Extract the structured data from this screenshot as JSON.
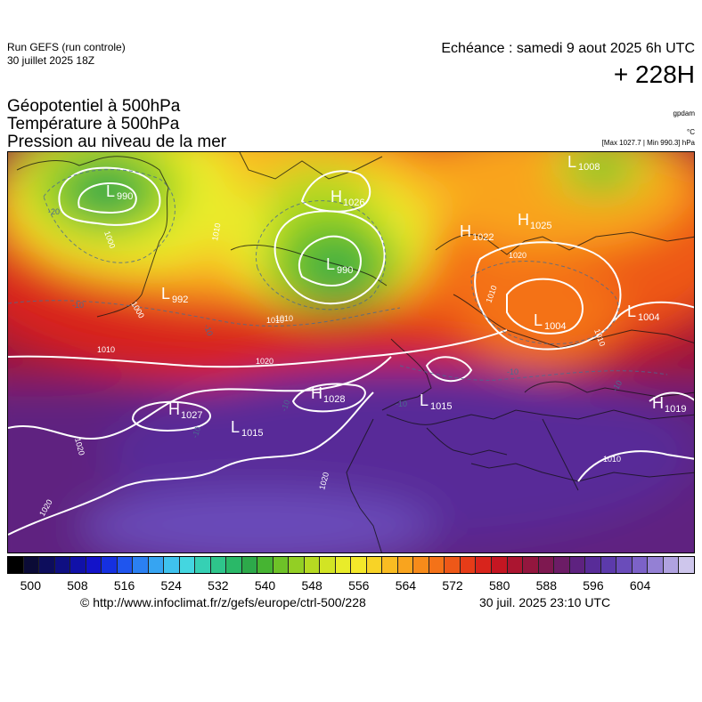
{
  "header": {
    "run_title": "Run GEFS (run controle)",
    "run_date": "30 juillet 2025 18Z",
    "valid_time": "Echéance : samedi 9 aout 2025 6h UTC",
    "lead_time": "+ 228H"
  },
  "parameters": [
    "Géopotentiel à 500hPa",
    "Température à 500hPa",
    "Pression au niveau de la mer"
  ],
  "units": {
    "geopotential": "gpdam",
    "temperature": "°C",
    "pressure": "[Max 1027.7 | Min 990.3] hPa"
  },
  "pressure_centers": [
    {
      "type": "L",
      "value": "990"
    },
    {
      "type": "H",
      "value": "1026"
    },
    {
      "type": "L",
      "value": "990"
    },
    {
      "type": "L",
      "value": "992"
    },
    {
      "type": "H",
      "value": "1025"
    },
    {
      "type": "H",
      "value": "1022"
    },
    {
      "type": "L",
      "value": "1004"
    },
    {
      "type": "L",
      "value": "1004"
    },
    {
      "type": "L",
      "value": "1008"
    },
    {
      "type": "H",
      "value": "1028"
    },
    {
      "type": "H",
      "value": "1027"
    },
    {
      "type": "L",
      "value": "1015"
    },
    {
      "type": "L",
      "value": "1015"
    },
    {
      "type": "H",
      "value": "1019"
    }
  ],
  "isobar_labels": [
    "1000",
    "1000",
    "1010",
    "1010",
    "1010",
    "1020",
    "1020",
    "1020",
    "1010",
    "1020",
    "1010",
    "1010",
    "1010",
    "1020"
  ],
  "temperature_labels": [
    "-20",
    "-10",
    "-10",
    "-10",
    "-10",
    "-10",
    "-10",
    "-10"
  ],
  "colorbar": {
    "tick_labels": [
      "500",
      "508",
      "516",
      "524",
      "532",
      "540",
      "548",
      "556",
      "564",
      "572",
      "580",
      "588",
      "596",
      "604"
    ],
    "colors": [
      "#000000",
      "#0b0b36",
      "#0d0d5c",
      "#0f0f82",
      "#1111a8",
      "#1313c9",
      "#1530e0",
      "#1f55ee",
      "#2b80f2",
      "#36a4f2",
      "#3fc2ee",
      "#44d6e0",
      "#36d0b4",
      "#2ec58b",
      "#2ab868",
      "#2da94a",
      "#46b432",
      "#6ec228",
      "#93cf24",
      "#b6da22",
      "#d2e424",
      "#e9ec2a",
      "#f4e82a",
      "#f8d326",
      "#f9bc22",
      "#f9a41e",
      "#f78b1a",
      "#f47218",
      "#ee5818",
      "#e63c18",
      "#d8241c",
      "#c41622",
      "#ab1530",
      "#93163e",
      "#7e1850",
      "#6c1c66",
      "#5e2280",
      "#582c98",
      "#5c3aab",
      "#6a4cba",
      "#7c62c8",
      "#9480d4",
      "#b0a2e0",
      "#cec6ec"
    ]
  },
  "footer": {
    "url": "© http://www.infoclimat.fr/z/gefs/europe/ctrl-500/228",
    "timestamp": "30 juil. 2025 23:10 UTC"
  }
}
